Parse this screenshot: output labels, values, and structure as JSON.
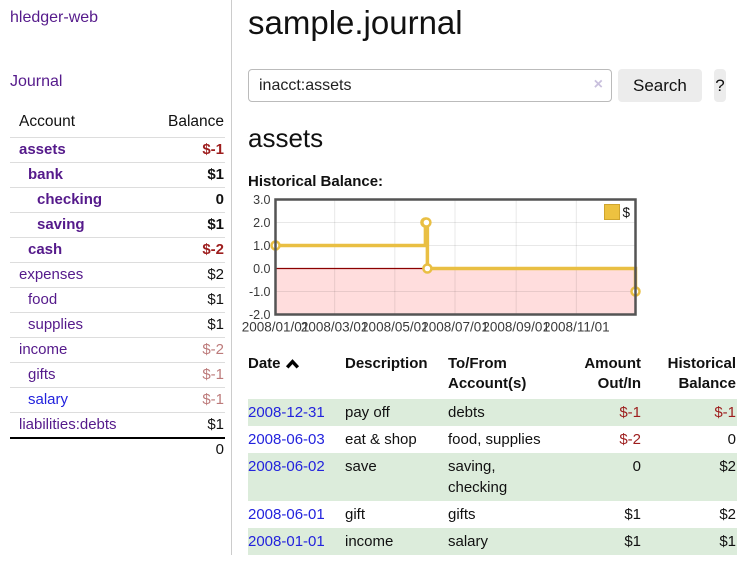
{
  "app": {
    "title": "hledger-web"
  },
  "sidebar": {
    "journal_label": "Journal",
    "accounts": {
      "header_account": "Account",
      "header_balance": "Balance",
      "rows": [
        {
          "name": "assets",
          "balance": "$-1",
          "indent": 1,
          "bold": true,
          "name_color": "purple",
          "balance_color": "negative"
        },
        {
          "name": "bank",
          "balance": "$1",
          "indent": 2,
          "bold": true,
          "name_color": "purple",
          "balance_color": "normal"
        },
        {
          "name": "checking",
          "balance": "0",
          "indent": 3,
          "bold": true,
          "name_color": "purple",
          "balance_color": "normal"
        },
        {
          "name": "saving",
          "balance": "$1",
          "indent": 3,
          "bold": true,
          "name_color": "purple",
          "balance_color": "normal"
        },
        {
          "name": "cash",
          "balance": "$-2",
          "indent": 2,
          "bold": true,
          "name_color": "purple",
          "balance_color": "negative"
        },
        {
          "name": "expenses",
          "balance": "$2",
          "indent": 1,
          "bold": false,
          "name_color": "purple",
          "balance_color": "normal"
        },
        {
          "name": "food",
          "balance": "$1",
          "indent": 2,
          "bold": false,
          "name_color": "purple",
          "balance_color": "normal"
        },
        {
          "name": "supplies",
          "balance": "$1",
          "indent": 2,
          "bold": false,
          "name_color": "purple",
          "balance_color": "normal"
        },
        {
          "name": "income",
          "balance": "$-2",
          "indent": 1,
          "bold": false,
          "name_color": "purple",
          "balance_color": "negative-soft"
        },
        {
          "name": "gifts",
          "balance": "$-1",
          "indent": 2,
          "bold": false,
          "name_color": "purple",
          "balance_color": "negative-soft"
        },
        {
          "name": "salary",
          "balance": "$-1",
          "indent": 2,
          "bold": false,
          "name_color": "blue",
          "balance_color": "negative-soft"
        },
        {
          "name": "liabilities:debts",
          "balance": "$1",
          "indent": 1,
          "bold": false,
          "name_color": "purple",
          "balance_color": "normal"
        }
      ],
      "total": "0"
    }
  },
  "main": {
    "title": "sample.journal",
    "search": {
      "value": "inacct:assets",
      "clear_icon": "×",
      "button_label": "Search",
      "help_label": "?"
    },
    "account_heading": "assets",
    "register": {
      "headers": {
        "date": "Date",
        "description": "Description",
        "tofrom": "To/From Account(s)",
        "amount": "Amount Out/In",
        "balance": "Historical Balance"
      },
      "rows": [
        {
          "date": "2008-12-31",
          "description": "pay off",
          "accounts": "debts",
          "amount": "$-1",
          "amount_negative": true,
          "balance": "$-1",
          "balance_negative": true,
          "highlight": true
        },
        {
          "date": "2008-06-03",
          "description": "eat & shop",
          "accounts": "food, supplies",
          "amount": "$-2",
          "amount_negative": true,
          "balance": "0",
          "balance_negative": false,
          "highlight": false
        },
        {
          "date": "2008-06-02",
          "description": "save",
          "accounts": "saving, checking",
          "amount": "0",
          "amount_negative": false,
          "balance": "$2",
          "balance_negative": false,
          "highlight": true
        },
        {
          "date": "2008-06-01",
          "description": "gift",
          "accounts": "gifts",
          "amount": "$1",
          "amount_negative": false,
          "balance": "$2",
          "balance_negative": false,
          "highlight": false
        },
        {
          "date": "2008-01-01",
          "description": "income",
          "accounts": "salary",
          "amount": "$1",
          "amount_negative": false,
          "balance": "$1",
          "balance_negative": false,
          "highlight": true
        }
      ]
    }
  },
  "chart_data": {
    "type": "line",
    "title": "Historical Balance:",
    "series": [
      {
        "name": "$",
        "step": true,
        "x": [
          "2008-01-01",
          "2008-06-01",
          "2008-06-02",
          "2008-06-03",
          "2008-12-31"
        ],
        "y": [
          1,
          2,
          2,
          0,
          -1
        ]
      }
    ],
    "x_range": [
      "2008-01-01",
      "2008-12-31"
    ],
    "x_tick_labels": [
      "2008/01/01",
      "2008/03/01",
      "2008/05/01",
      "2008/07/01",
      "2008/09/01",
      "2008/11/01"
    ],
    "y_ticks": [
      3,
      2,
      1,
      0,
      -1,
      -2
    ],
    "y_tick_labels": [
      "3.0",
      "2.0",
      "1.0",
      "0.0",
      "-1.0",
      "-2.0"
    ],
    "ylim": [
      -2,
      3
    ],
    "grid": true,
    "legend_position": "top-right",
    "colors": {
      "line": "#e9bf43",
      "marker_fill": "#ffffff",
      "negative_region_fill": "#ffdddd",
      "zero_line": "#8b0000",
      "border": "#545454",
      "legend_swatch": "#edc240"
    }
  },
  "colors": {
    "link_purple": "#551a8b",
    "link_blue": "#2323dd",
    "negative_strong": "#9d1d1d",
    "negative_soft": "#bd7b7b",
    "row_highlight_green": "#dcecdb"
  }
}
